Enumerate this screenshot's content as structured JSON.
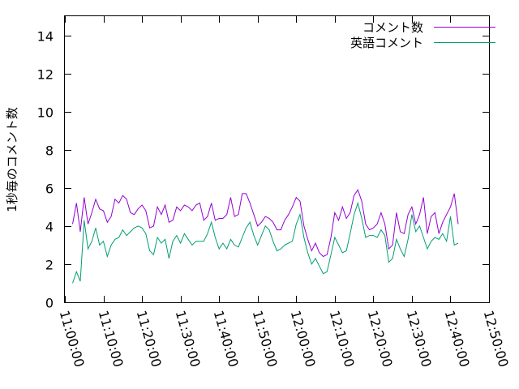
{
  "chart_data": {
    "type": "line",
    "title": "",
    "xlabel": "",
    "ylabel": "1秒毎のコメント数",
    "ylim": [
      0,
      15
    ],
    "yticks": [
      0,
      2,
      4,
      6,
      8,
      10,
      12,
      14
    ],
    "xlim": [
      "11:00:00",
      "12:50:00"
    ],
    "xtick_labels": [
      "11:00:00",
      "11:10:00",
      "11:20:00",
      "11:30:00",
      "11:40:00",
      "11:50:00",
      "12:00:00",
      "12:10:00",
      "12:20:00",
      "12:30:00",
      "12:40:00",
      "12:50:00"
    ],
    "grid": false,
    "legend": "top-right",
    "x_start": "11:02:00",
    "x_step": "1 min",
    "series": [
      {
        "name": "コメント数",
        "color": "#9400d3",
        "values": [
          4.1,
          5.2,
          3.7,
          5.5,
          4.1,
          4.7,
          5.4,
          4.9,
          4.8,
          4.2,
          4.5,
          5.4,
          5.2,
          5.6,
          5.4,
          4.7,
          4.6,
          4.9,
          5.1,
          4.8,
          3.9,
          4.0,
          5.0,
          4.6,
          5.1,
          4.2,
          4.3,
          5.0,
          4.8,
          5.1,
          5.0,
          4.8,
          5.1,
          5.2,
          4.3,
          4.5,
          5.2,
          4.3,
          4.4,
          4.4,
          4.6,
          5.5,
          4.5,
          4.6,
          5.7,
          5.7,
          5.2,
          4.6,
          4.0,
          4.2,
          4.5,
          4.4,
          4.2,
          3.8,
          3.8,
          4.3,
          4.6,
          5.0,
          5.5,
          5.3,
          4.0,
          3.3,
          2.7,
          3.1,
          2.6,
          2.4,
          2.5,
          3.4,
          4.7,
          4.3,
          5.0,
          4.4,
          4.7,
          5.6,
          5.9,
          5.3,
          4.1,
          3.8,
          3.9,
          4.1,
          4.7,
          4.1,
          2.8,
          3.0,
          4.7,
          3.7,
          3.6,
          4.6,
          5.0,
          4.1,
          4.6,
          5.5,
          3.6,
          4.5,
          4.7,
          3.6,
          4.2,
          4.6,
          5.0,
          5.7,
          4.1
        ]
      },
      {
        "name": "英語コメント",
        "color": "#009e73",
        "values": [
          1.0,
          1.6,
          1.1,
          4.3,
          2.8,
          3.2,
          3.9,
          3.0,
          3.2,
          2.4,
          3.0,
          3.3,
          3.4,
          3.8,
          3.5,
          3.7,
          3.9,
          4.0,
          3.9,
          3.6,
          2.7,
          2.5,
          3.4,
          3.1,
          3.3,
          2.3,
          3.2,
          3.5,
          3.1,
          3.6,
          3.3,
          3.0,
          3.2,
          3.2,
          3.2,
          3.6,
          4.2,
          3.4,
          2.8,
          3.1,
          2.8,
          3.3,
          3.0,
          2.9,
          3.4,
          3.9,
          4.2,
          3.5,
          3.0,
          3.5,
          4.0,
          3.8,
          3.2,
          2.7,
          2.8,
          3.0,
          3.1,
          3.2,
          4.1,
          4.6,
          3.4,
          2.6,
          2.0,
          2.3,
          1.9,
          1.5,
          1.6,
          2.5,
          3.4,
          3.0,
          2.6,
          2.7,
          3.6,
          4.6,
          5.2,
          4.4,
          3.4,
          3.5,
          3.5,
          3.4,
          3.8,
          3.5,
          2.1,
          2.3,
          3.3,
          2.8,
          2.4,
          3.3,
          4.6,
          3.7,
          4.0,
          3.4,
          2.8,
          3.2,
          3.4,
          3.3,
          3.6,
          3.2,
          4.5,
          3.0,
          3.1
        ]
      }
    ]
  }
}
